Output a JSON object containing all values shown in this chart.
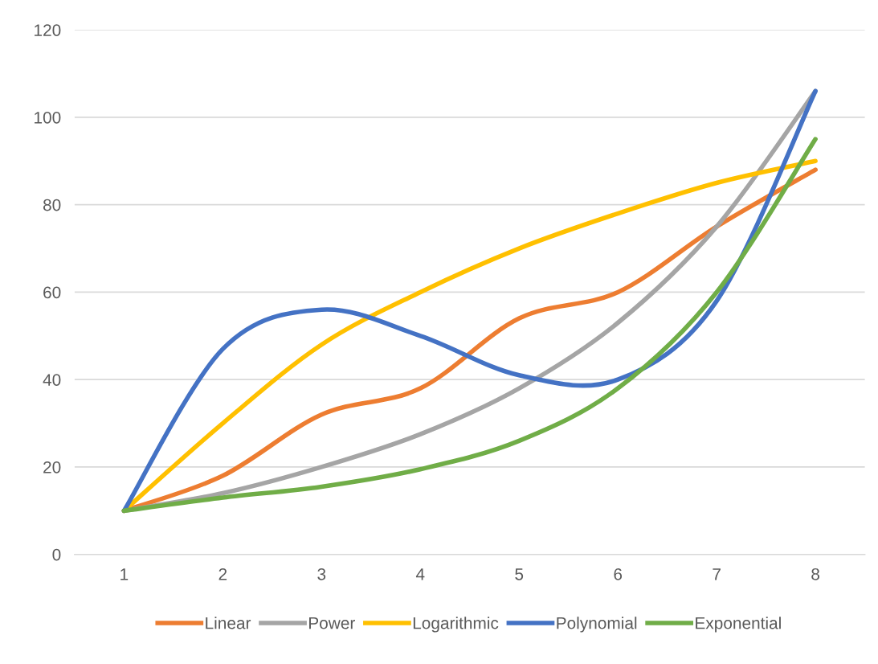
{
  "chart_data": {
    "type": "line",
    "categories": [
      "1",
      "2",
      "3",
      "4",
      "5",
      "6",
      "7",
      "8"
    ],
    "series": [
      {
        "name": "Linear",
        "color": "#ed7d31",
        "values": [
          10,
          18,
          32,
          38,
          54,
          60,
          75,
          88
        ]
      },
      {
        "name": "Power",
        "color": "#a5a5a5",
        "values": [
          10,
          14,
          20,
          27.5,
          38,
          53,
          75,
          106
        ]
      },
      {
        "name": "Logarithmic",
        "color": "#ffc000",
        "values": [
          10,
          30,
          48,
          60,
          70,
          78,
          85,
          90
        ]
      },
      {
        "name": "Polynomial",
        "color": "#4472c4",
        "values": [
          10,
          47,
          56,
          50,
          41,
          40,
          58,
          106
        ]
      },
      {
        "name": "Exponential",
        "color": "#70ad47",
        "values": [
          10,
          13,
          15.5,
          19.5,
          26,
          38,
          60,
          95
        ]
      }
    ],
    "ylim": [
      0,
      120
    ],
    "yticks": [
      0,
      20,
      40,
      60,
      80,
      100,
      120
    ],
    "grid": "y",
    "legend": "bottom",
    "marker": "none",
    "line_style": "solid"
  }
}
